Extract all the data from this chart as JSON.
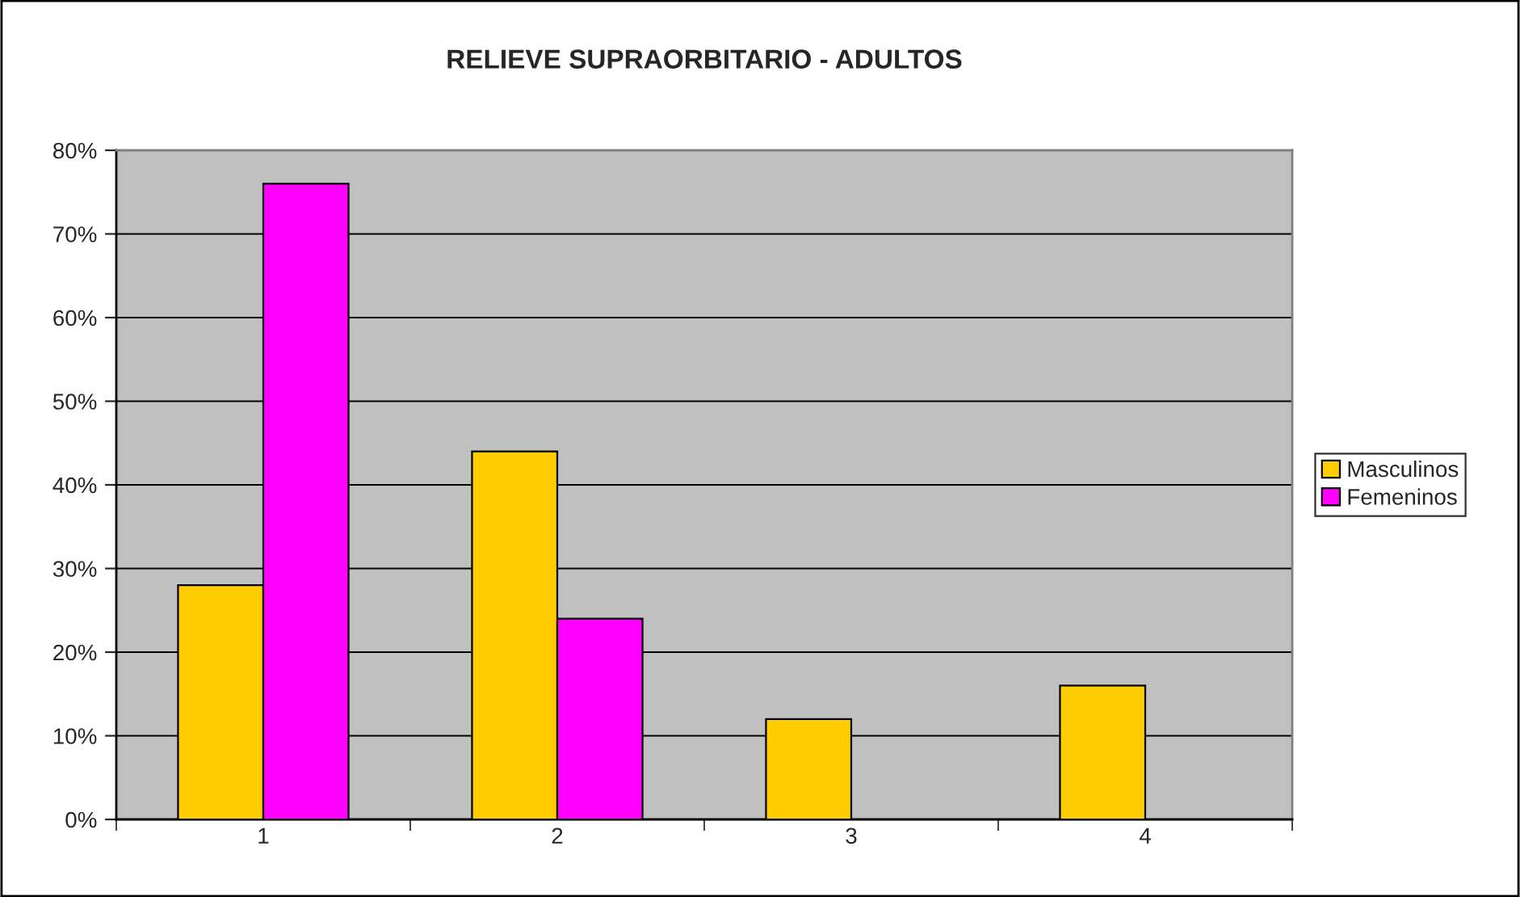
{
  "chart_data": {
    "type": "bar",
    "title": "RELIEVE SUPRAORBITARIO - ADULTOS",
    "categories": [
      "1",
      "2",
      "3",
      "4"
    ],
    "series": [
      {
        "name": "Masculinos",
        "color": "#ffcc00",
        "values": [
          28,
          44,
          12,
          16
        ]
      },
      {
        "name": "Femeninos",
        "color": "#ff00ff",
        "values": [
          76,
          24,
          null,
          null
        ]
      }
    ],
    "ylim": [
      0,
      80
    ],
    "yticks": [
      {
        "value": 0,
        "label": "0%"
      },
      {
        "value": 10,
        "label": "10%"
      },
      {
        "value": 20,
        "label": "20%"
      },
      {
        "value": 30,
        "label": "30%"
      },
      {
        "value": 40,
        "label": "40%"
      },
      {
        "value": 50,
        "label": "50%"
      },
      {
        "value": 60,
        "label": "60%"
      },
      {
        "value": 70,
        "label": "70%"
      },
      {
        "value": 80,
        "label": "80%"
      }
    ],
    "grid": "y",
    "legend": "right"
  }
}
